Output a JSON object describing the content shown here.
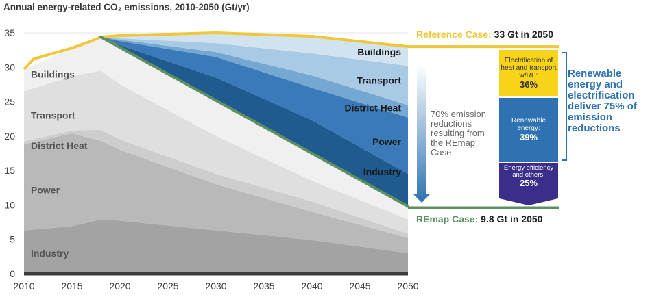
{
  "chart_data": {
    "type": "area",
    "title": "Annual energy-related CO₂ emissions, 2010-2050 (Gt/yr)",
    "x_ticks": [
      "2010",
      "2015",
      "2020",
      "2025",
      "2030",
      "2035",
      "2040",
      "2045",
      "2050"
    ],
    "y_ticks": [
      "0",
      "5",
      "10",
      "15",
      "20",
      "25",
      "30",
      "35"
    ],
    "xlim": [
      2010,
      2050
    ],
    "ylim": [
      0,
      35
    ],
    "reference_case": {
      "name": "Reference Case",
      "label": "Reference Case:",
      "value_text": "33 Gt in 2050",
      "x": [
        2010,
        2011,
        2015,
        2017,
        2018,
        2020,
        2030,
        2040,
        2050
      ],
      "y": [
        29.7,
        31.2,
        32.8,
        33.8,
        34.4,
        34.6,
        35.0,
        34.5,
        33.0
      ],
      "color": "#f0c63a"
    },
    "remap_case": {
      "name": "REmap Case",
      "label": "REmap Case:",
      "value_text": "9.8 Gt in 2050",
      "x": [
        2018,
        2050
      ],
      "y": [
        34.4,
        9.8
      ],
      "color": "#5e8f63"
    },
    "historical_sectors": {
      "x": [
        2010,
        2015,
        2018,
        2020,
        2030,
        2040,
        2050
      ],
      "series": [
        {
          "name": "Industry",
          "label": "Industry",
          "top": [
            6.3,
            6.9,
            7.9,
            7.7,
            6.3,
            4.9,
            3.0
          ],
          "color": "#a3a3a3"
        },
        {
          "name": "Power",
          "label": "Power",
          "top": [
            18.8,
            20.4,
            19.3,
            18.0,
            13.0,
            9.0,
            5.2
          ],
          "color": "#b9b9b9"
        },
        {
          "name": "District Heat",
          "label": "District Heat",
          "top": [
            19.2,
            20.8,
            20.9,
            19.5,
            14.5,
            10.5,
            5.8
          ],
          "color": "#cdcdcd"
        },
        {
          "name": "Transport",
          "label": "Transport",
          "top": [
            26.5,
            28.7,
            29.5,
            27.5,
            20.0,
            13.5,
            7.9
          ],
          "color": "#dfdfdf"
        },
        {
          "name": "Buildings",
          "label": "Buildings",
          "top": [
            29.7,
            32.8,
            34.4,
            34.4,
            25.5,
            17.5,
            9.8
          ],
          "color": "#f0f0f0"
        }
      ]
    },
    "reduction_wedges": {
      "x": [
        2018,
        2020,
        2030,
        2040,
        2050
      ],
      "series": [
        {
          "name": "Industry",
          "label": "Industry",
          "top": [
            34.4,
            33.2,
            28.5,
            22.3,
            14.5
          ],
          "color": "#1f5b8e"
        },
        {
          "name": "Power",
          "label": "Power",
          "top": [
            34.4,
            33.8,
            31.5,
            27.0,
            22.7
          ],
          "color": "#3a7ab8"
        },
        {
          "name": "District Heat",
          "label": "District Heat",
          "top": [
            34.4,
            34.0,
            32.2,
            28.8,
            24.5
          ],
          "color": "#74a8d2"
        },
        {
          "name": "Transport",
          "label": "Transport",
          "top": [
            34.4,
            34.2,
            33.5,
            32.0,
            30.2
          ],
          "color": "#a9cae4"
        },
        {
          "name": "Buildings",
          "label": "Buildings",
          "top": [
            34.4,
            34.6,
            35.0,
            34.5,
            33.0
          ],
          "color": "#d2e3f0"
        }
      ]
    },
    "arrow_annotation": "70% emission reductions resulting from the REmap Case",
    "breakdown": [
      {
        "label": "Electrification of heat and transport w/RE:",
        "percent": "36%",
        "color": "#f7d31a"
      },
      {
        "label": "Renewable energy:",
        "percent": "39%",
        "color": "#2e72b1"
      },
      {
        "label": "Energy efficiency and others:",
        "percent": "25%",
        "color": "#3b2d8a"
      }
    ],
    "side_note": "Renewable energy and electrification deliver 75% of emission reductions"
  }
}
